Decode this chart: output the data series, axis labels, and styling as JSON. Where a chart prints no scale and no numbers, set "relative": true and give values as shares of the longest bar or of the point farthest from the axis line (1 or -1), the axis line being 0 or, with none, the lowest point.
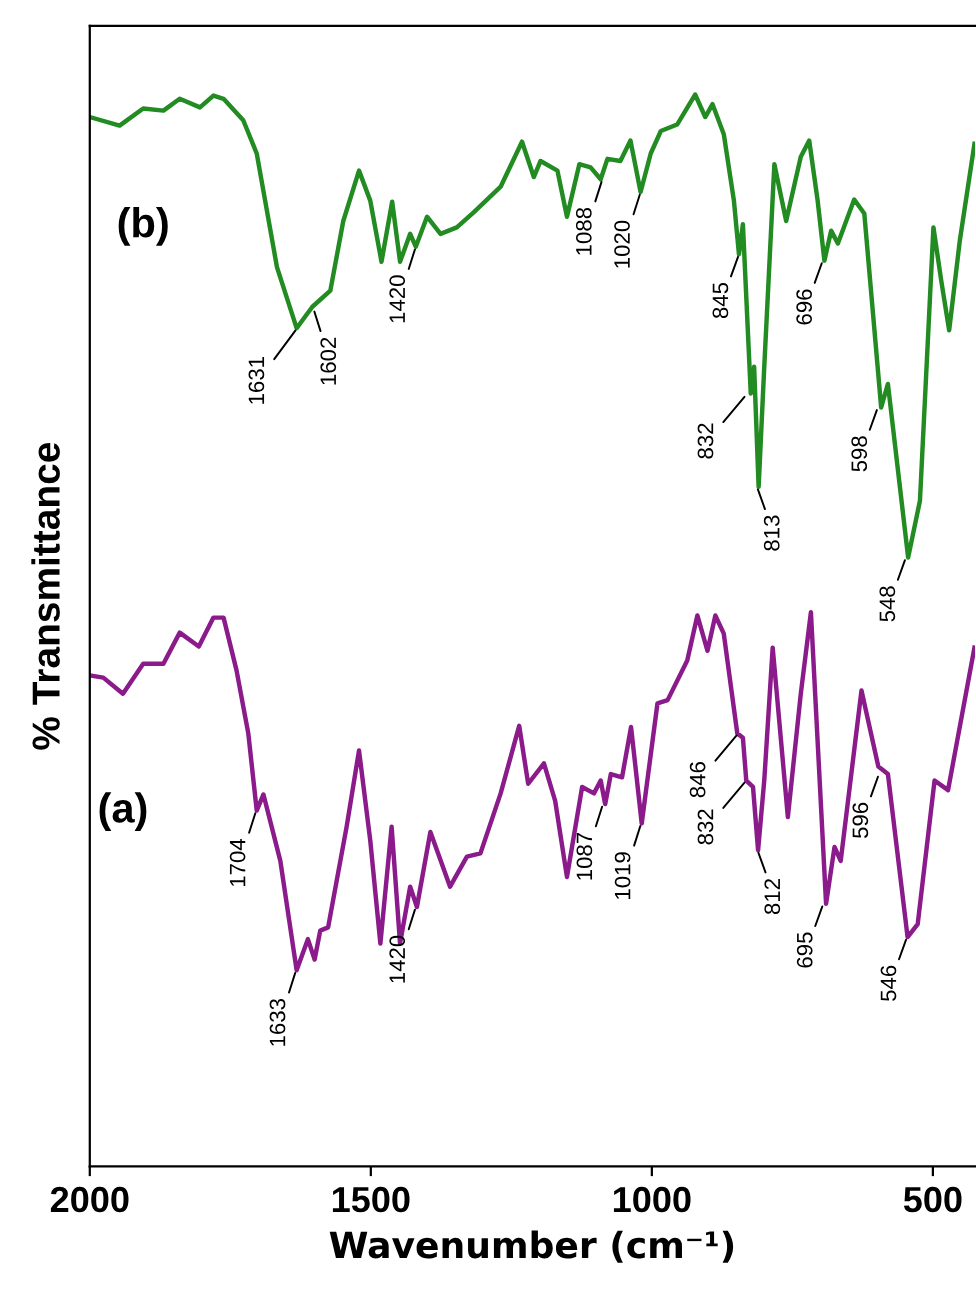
{
  "chart_data": {
    "type": "line",
    "relative": true,
    "xlabel": "Wavenumber (cm⁻¹)",
    "ylabel": "% Transmittance",
    "xlim": [
      2000,
      425
    ],
    "xticks": [
      2000,
      1500,
      1000,
      500
    ],
    "grid": false,
    "legend": false,
    "marker": "none",
    "line_style": "solid",
    "series": [
      {
        "name": "(b)",
        "color": "#228b22",
        "x": [
          2000,
          1947,
          1905,
          1869,
          1840,
          1804,
          1780,
          1762,
          1727,
          1703,
          1667,
          1632,
          1604,
          1572,
          1549,
          1521,
          1501,
          1481,
          1462,
          1448,
          1430,
          1420,
          1400,
          1376,
          1347,
          1317,
          1269,
          1231,
          1210,
          1198,
          1168,
          1151,
          1129,
          1109,
          1091,
          1079,
          1056,
          1038,
          1020,
          1002,
          984,
          955,
          923,
          905,
          892,
          872,
          854,
          845,
          838,
          824,
          818,
          810,
          800,
          782,
          761,
          735,
          720,
          705,
          693,
          681,
          669,
          640,
          622,
          592,
          580,
          544,
          523,
          499,
          485,
          471,
          452,
          426
        ],
        "values": [
          0.979,
          0.971,
          0.987,
          0.985,
          0.996,
          0.988,
          0.999,
          0.996,
          0.976,
          0.945,
          0.839,
          0.782,
          0.802,
          0.817,
          0.882,
          0.929,
          0.901,
          0.844,
          0.9,
          0.844,
          0.87,
          0.858,
          0.886,
          0.87,
          0.876,
          0.89,
          0.914,
          0.956,
          0.923,
          0.938,
          0.929,
          0.886,
          0.935,
          0.932,
          0.921,
          0.94,
          0.938,
          0.957,
          0.909,
          0.945,
          0.966,
          0.972,
          1.0,
          0.979,
          0.991,
          0.963,
          0.901,
          0.851,
          0.879,
          0.721,
          0.746,
          0.634,
          0.746,
          0.935,
          0.882,
          0.942,
          0.957,
          0.901,
          0.845,
          0.873,
          0.861,
          0.902,
          0.889,
          0.708,
          0.73,
          0.568,
          0.621,
          0.876,
          0.826,
          0.78,
          0.864,
          0.954
        ]
      },
      {
        "name": "(a)",
        "color": "#8b1a8b",
        "x": [
          2000,
          1976,
          1941,
          1905,
          1869,
          1840,
          1806,
          1780,
          1762,
          1739,
          1718,
          1703,
          1691,
          1661,
          1632,
          1612,
          1600,
          1590,
          1576,
          1543,
          1521,
          1501,
          1483,
          1463,
          1448,
          1430,
          1418,
          1394,
          1359,
          1329,
          1305,
          1269,
          1236,
          1220,
          1192,
          1172,
          1151,
          1124,
          1103,
          1091,
          1083,
          1073,
          1053,
          1037,
          1018,
          990,
          972,
          937,
          919,
          901,
          887,
          872,
          848,
          838,
          832,
          820,
          811,
          800,
          785,
          758,
          735,
          717,
          690,
          675,
          664,
          627,
          597,
          580,
          545,
          527,
          497,
          473,
          426
        ],
        "values": [
          0.458,
          0.456,
          0.441,
          0.469,
          0.469,
          0.498,
          0.485,
          0.512,
          0.512,
          0.463,
          0.404,
          0.332,
          0.347,
          0.285,
          0.183,
          0.212,
          0.193,
          0.22,
          0.223,
          0.317,
          0.388,
          0.304,
          0.208,
          0.317,
          0.208,
          0.261,
          0.242,
          0.312,
          0.261,
          0.289,
          0.292,
          0.348,
          0.411,
          0.357,
          0.376,
          0.341,
          0.27,
          0.354,
          0.348,
          0.36,
          0.338,
          0.366,
          0.363,
          0.41,
          0.32,
          0.432,
          0.435,
          0.472,
          0.514,
          0.481,
          0.514,
          0.497,
          0.404,
          0.4,
          0.36,
          0.354,
          0.295,
          0.36,
          0.484,
          0.326,
          0.441,
          0.517,
          0.245,
          0.298,
          0.285,
          0.444,
          0.373,
          0.366,
          0.214,
          0.226,
          0.36,
          0.351,
          0.484
        ]
      }
    ],
    "annotations": [
      {
        "text": "1631",
        "x": 1631,
        "y": 0.782
      },
      {
        "text": "1602",
        "x": 1602,
        "y": 0.8
      },
      {
        "text": "1420",
        "x": 1420,
        "y": 0.858
      },
      {
        "text": "1088",
        "x": 1088,
        "y": 0.921
      },
      {
        "text": "1020",
        "x": 1020,
        "y": 0.909
      },
      {
        "text": "845",
        "x": 845,
        "y": 0.851
      },
      {
        "text": "832",
        "x": 832,
        "y": 0.72
      },
      {
        "text": "813",
        "x": 813,
        "y": 0.634
      },
      {
        "text": "696",
        "x": 696,
        "y": 0.845
      },
      {
        "text": "598",
        "x": 598,
        "y": 0.708
      },
      {
        "text": "548",
        "x": 548,
        "y": 0.568
      },
      {
        "text": "1704",
        "x": 1704,
        "y": 0.332
      },
      {
        "text": "1633",
        "x": 1633,
        "y": 0.183
      },
      {
        "text": "1420",
        "x": 1420,
        "y": 0.242
      },
      {
        "text": "1087",
        "x": 1087,
        "y": 0.338
      },
      {
        "text": "1019",
        "x": 1019,
        "y": 0.32
      },
      {
        "text": "846",
        "x": 846,
        "y": 0.404
      },
      {
        "text": "832",
        "x": 832,
        "y": 0.36
      },
      {
        "text": "812",
        "x": 812,
        "y": 0.295
      },
      {
        "text": "695",
        "x": 695,
        "y": 0.245
      },
      {
        "text": "596",
        "x": 596,
        "y": 0.366
      },
      {
        "text": "546",
        "x": 546,
        "y": 0.214
      }
    ]
  }
}
